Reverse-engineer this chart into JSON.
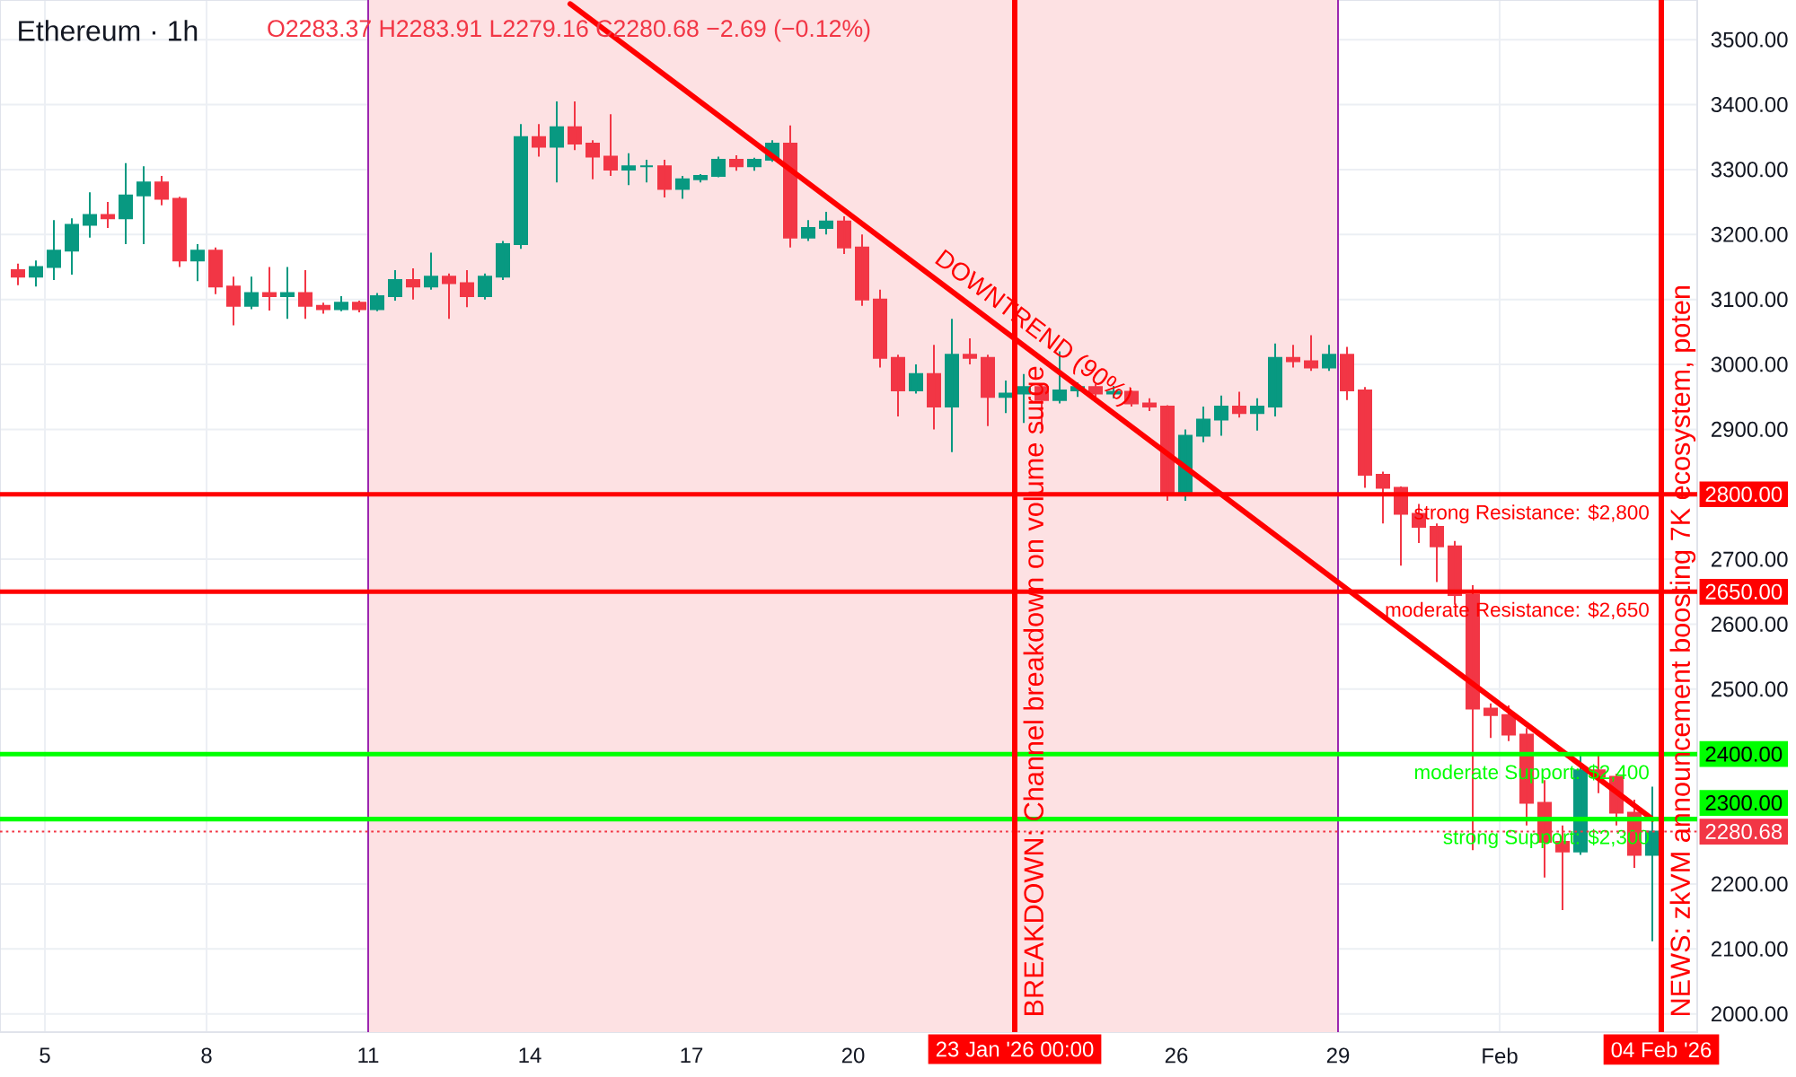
{
  "chart_data": {
    "type": "candlestick",
    "title": "Ethereum · 1h",
    "annotations": [
      "O2283.37 H2283.91 L2279.16 C2280.68 −2.69 (−0.12%)",
      {
        "text": "DOWNTREND (90%)",
        "x": "2026-01-23T03:00",
        "y": 3031
      },
      {
        "text": "2800.00",
        "x": "2026-02-04T16:00",
        "y": 2800
      },
      {
        "text": "2650.00",
        "x": "2026-02-04T16:00",
        "y": 2650
      },
      {
        "text": "2400.00",
        "x": "2026-02-04T16:00",
        "y": 2400
      },
      {
        "text": "2300.00",
        "x": "2026-02-04T16:00",
        "y": 2300
      },
      {
        "text": "2280.68",
        "x": "2026-02-04T16:00",
        "y": 2280.68
      },
      {
        "text": "23 Jan '26 00:00",
        "x": "2026-01-23",
        "y": 1972
      },
      {
        "text": "04 Feb '26",
        "x": "2026-02-04",
        "y": 1972
      }
    ],
    "xlim": [
      "2026-01-04T04:00",
      "2026-02-04T16:00"
    ],
    "ylim": [
      1972,
      3561
    ],
    "xticks": [
      {
        "value": "2026-01-05",
        "label": "5"
      },
      {
        "value": "2026-01-08",
        "label": "8"
      },
      {
        "value": "2026-01-11",
        "label": "11"
      },
      {
        "value": "2026-01-14",
        "label": "14"
      },
      {
        "value": "2026-01-17",
        "label": "17"
      },
      {
        "value": "2026-01-20",
        "label": "20"
      },
      {
        "value": "2026-01-26",
        "label": "26"
      },
      {
        "value": "2026-01-29",
        "label": "29"
      },
      {
        "value": "2026-02-01",
        "label": "Feb"
      }
    ],
    "yticks": [
      {
        "value": 2000,
        "label": "2000.00"
      },
      {
        "value": 2100,
        "label": "2100.00"
      },
      {
        "value": 2200,
        "label": "2200.00"
      },
      {
        "value": 2500,
        "label": "2500.00"
      },
      {
        "value": 2600,
        "label": "2600.00"
      },
      {
        "value": 2700,
        "label": "2700.00"
      },
      {
        "value": 2900,
        "label": "2900.00"
      },
      {
        "value": 3000,
        "label": "3000.00"
      },
      {
        "value": 3100,
        "label": "3100.00"
      },
      {
        "value": 3200,
        "label": "3200.00"
      },
      {
        "value": 3300,
        "label": "3300.00"
      },
      {
        "value": 3400,
        "label": "3400.00"
      },
      {
        "value": 3500,
        "label": "3500.00"
      }
    ],
    "grid": true,
    "series": [
      {
        "x": [
          "2026-01-04T12:00",
          "2026-01-04T20:00",
          "2026-01-05T04:00",
          "2026-01-05T12:00",
          "2026-01-05T20:00",
          "2026-01-06T04:00",
          "2026-01-06T12:00",
          "2026-01-06T20:00",
          "2026-01-07T04:00",
          "2026-01-07T12:00",
          "2026-01-07T20:00",
          "2026-01-08T04:00",
          "2026-01-08T12:00",
          "2026-01-08T20:00",
          "2026-01-09T04:00",
          "2026-01-09T12:00",
          "2026-01-09T20:00",
          "2026-01-10T04:00",
          "2026-01-10T12:00",
          "2026-01-10T20:00",
          "2026-01-11T04:00",
          "2026-01-11T12:00",
          "2026-01-11T20:00",
          "2026-01-12T04:00",
          "2026-01-12T12:00",
          "2026-01-12T20:00",
          "2026-01-13T04:00",
          "2026-01-13T12:00",
          "2026-01-13T20:00",
          "2026-01-14T04:00",
          "2026-01-14T12:00",
          "2026-01-14T20:00",
          "2026-01-15T04:00",
          "2026-01-15T12:00",
          "2026-01-15T20:00",
          "2026-01-16T04:00",
          "2026-01-16T12:00",
          "2026-01-16T20:00",
          "2026-01-17T04:00",
          "2026-01-17T12:00",
          "2026-01-17T20:00",
          "2026-01-18T04:00",
          "2026-01-18T12:00",
          "2026-01-18T20:00",
          "2026-01-19T04:00",
          "2026-01-19T12:00",
          "2026-01-19T20:00",
          "2026-01-20T04:00",
          "2026-01-20T12:00",
          "2026-01-20T20:00",
          "2026-01-21T04:00",
          "2026-01-21T12:00",
          "2026-01-21T20:00",
          "2026-01-22T04:00",
          "2026-01-22T12:00",
          "2026-01-22T20:00",
          "2026-01-23T04:00",
          "2026-01-23T12:00",
          "2026-01-23T20:00",
          "2026-01-24T04:00",
          "2026-01-24T12:00",
          "2026-01-24T20:00",
          "2026-01-25T04:00",
          "2026-01-25T12:00",
          "2026-01-25T20:00",
          "2026-01-26T04:00",
          "2026-01-26T12:00",
          "2026-01-26T20:00",
          "2026-01-27T04:00",
          "2026-01-27T12:00",
          "2026-01-27T20:00",
          "2026-01-28T04:00",
          "2026-01-28T12:00",
          "2026-01-28T20:00",
          "2026-01-29T04:00",
          "2026-01-29T12:00",
          "2026-01-29T20:00",
          "2026-01-30T04:00",
          "2026-01-30T12:00",
          "2026-01-30T20:00",
          "2026-01-31T04:00",
          "2026-01-31T12:00",
          "2026-01-31T20:00",
          "2026-02-01T04:00",
          "2026-02-01T12:00",
          "2026-02-01T20:00",
          "2026-02-02T04:00",
          "2026-02-02T12:00",
          "2026-02-02T20:00",
          "2026-02-03T04:00",
          "2026-02-03T12:00",
          "2026-02-03T20:00"
        ],
        "ohlc": [
          [
            3145,
            3155,
            3122,
            3135
          ],
          [
            3135,
            3160,
            3120,
            3150
          ],
          [
            3150,
            3222,
            3130,
            3175
          ],
          [
            3175,
            3225,
            3138,
            3215
          ],
          [
            3215,
            3265,
            3195,
            3230
          ],
          [
            3230,
            3250,
            3210,
            3225
          ],
          [
            3225,
            3310,
            3185,
            3260
          ],
          [
            3260,
            3305,
            3185,
            3280
          ],
          [
            3280,
            3290,
            3245,
            3255
          ],
          [
            3255,
            3258,
            3150,
            3160
          ],
          [
            3160,
            3185,
            3128,
            3175
          ],
          [
            3175,
            3180,
            3108,
            3120
          ],
          [
            3120,
            3135,
            3060,
            3090
          ],
          [
            3090,
            3135,
            3085,
            3110
          ],
          [
            3110,
            3150,
            3083,
            3105
          ],
          [
            3105,
            3150,
            3070,
            3110
          ],
          [
            3110,
            3145,
            3070,
            3090
          ],
          [
            3090,
            3095,
            3078,
            3085
          ],
          [
            3085,
            3105,
            3082,
            3095
          ],
          [
            3095,
            3098,
            3080,
            3085
          ],
          [
            3085,
            3110,
            3082,
            3105
          ],
          [
            3105,
            3145,
            3098,
            3130
          ],
          [
            3130,
            3148,
            3100,
            3120
          ],
          [
            3120,
            3172,
            3115,
            3135
          ],
          [
            3135,
            3140,
            3070,
            3125
          ],
          [
            3125,
            3145,
            3088,
            3105
          ],
          [
            3105,
            3140,
            3100,
            3135
          ],
          [
            3135,
            3190,
            3130,
            3185
          ],
          [
            3185,
            3370,
            3178,
            3350
          ],
          [
            3350,
            3370,
            3320,
            3335
          ],
          [
            3335,
            3405,
            3280,
            3365
          ],
          [
            3365,
            3405,
            3330,
            3340
          ],
          [
            3340,
            3345,
            3285,
            3320
          ],
          [
            3320,
            3385,
            3290,
            3300
          ],
          [
            3300,
            3325,
            3276,
            3305
          ],
          [
            3305,
            3315,
            3280,
            3305
          ],
          [
            3305,
            3315,
            3257,
            3270
          ],
          [
            3270,
            3290,
            3255,
            3285
          ],
          [
            3285,
            3293,
            3280,
            3290
          ],
          [
            3290,
            3320,
            3288,
            3315
          ],
          [
            3315,
            3322,
            3298,
            3305
          ],
          [
            3305,
            3318,
            3298,
            3315
          ],
          [
            3315,
            3345,
            3312,
            3340
          ],
          [
            3340,
            3368,
            3180,
            3195
          ],
          [
            3195,
            3222,
            3190,
            3210
          ],
          [
            3210,
            3235,
            3200,
            3220
          ],
          [
            3220,
            3228,
            3170,
            3180
          ],
          [
            3180,
            3200,
            3090,
            3100
          ],
          [
            3100,
            3115,
            2995,
            3010
          ],
          [
            3010,
            3015,
            2920,
            2960
          ],
          [
            2960,
            3000,
            2955,
            2985
          ],
          [
            2985,
            3030,
            2900,
            2935
          ],
          [
            2935,
            3070,
            2865,
            3015
          ],
          [
            3015,
            3040,
            3000,
            3010
          ],
          [
            3010,
            3015,
            2905,
            2950
          ],
          [
            2950,
            2975,
            2925,
            2955
          ],
          [
            2955,
            2985,
            2910,
            2965
          ],
          [
            2965,
            2970,
            2900,
            2945
          ],
          [
            2945,
            3020,
            2940,
            2960
          ],
          [
            2960,
            2972,
            2950,
            2965
          ],
          [
            2965,
            2970,
            2948,
            2955
          ],
          [
            2955,
            2967,
            2948,
            2958
          ],
          [
            2958,
            2960,
            2935,
            2940
          ],
          [
            2940,
            2948,
            2928,
            2935
          ],
          [
            2935,
            2937,
            2790,
            2800
          ],
          [
            2800,
            2900,
            2790,
            2890
          ],
          [
            2890,
            2935,
            2880,
            2915
          ],
          [
            2915,
            2952,
            2890,
            2935
          ],
          [
            2935,
            2958,
            2918,
            2925
          ],
          [
            2925,
            2948,
            2898,
            2935
          ],
          [
            2935,
            3032,
            2920,
            3010
          ],
          [
            3010,
            3030,
            2995,
            3005
          ],
          [
            3005,
            3045,
            2990,
            2995
          ],
          [
            2995,
            3030,
            2990,
            3015
          ],
          [
            3015,
            3027,
            2945,
            2960
          ],
          [
            2960,
            2965,
            2810,
            2830
          ],
          [
            2830,
            2835,
            2755,
            2810
          ],
          [
            2810,
            2812,
            2690,
            2770
          ],
          [
            2770,
            2785,
            2725,
            2750
          ],
          [
            2750,
            2755,
            2665,
            2720
          ],
          [
            2720,
            2728,
            2630,
            2645
          ],
          [
            2645,
            2660,
            2252,
            2470
          ],
          [
            2470,
            2478,
            2425,
            2460
          ],
          [
            2460,
            2475,
            2420,
            2430
          ],
          [
            2430,
            2440,
            2290,
            2325
          ],
          [
            2325,
            2360,
            2210,
            2265
          ],
          [
            2265,
            2290,
            2160,
            2250
          ],
          [
            2250,
            2400,
            2245,
            2375
          ],
          [
            2375,
            2400,
            2340,
            2365
          ],
          [
            2365,
            2370,
            2290,
            2310
          ],
          [
            2310,
            2330,
            2225,
            2245
          ],
          [
            2245,
            2350,
            2112,
            2280.68
          ]
        ],
        "colors": [
          "#f23645",
          "#089981",
          "#089981",
          "#089981",
          "#089981",
          "#f23645",
          "#089981",
          "#089981",
          "#f23645",
          "#f23645",
          "#089981",
          "#f23645",
          "#f23645",
          "#089981",
          "#f23645",
          "#089981",
          "#f23645",
          "#f23645",
          "#089981",
          "#f23645",
          "#089981",
          "#089981",
          "#f23645",
          "#089981",
          "#f23645",
          "#f23645",
          "#089981",
          "#089981",
          "#089981",
          "#f23645",
          "#089981",
          "#f23645",
          "#f23645",
          "#f23645",
          "#089981",
          "#089981",
          "#f23645",
          "#089981",
          "#089981",
          "#089981",
          "#f23645",
          "#089981",
          "#089981",
          "#f23645",
          "#089981",
          "#089981",
          "#f23645",
          "#f23645",
          "#f23645",
          "#f23645",
          "#089981",
          "#f23645",
          "#089981",
          "#f23645",
          "#f23645",
          "#089981",
          "#089981",
          "#f23645",
          "#089981",
          "#089981",
          "#f23645",
          "#089981",
          "#f23645",
          "#f23645",
          "#f23645",
          "#089981",
          "#089981",
          "#089981",
          "#f23645",
          "#089981",
          "#089981",
          "#f23645",
          "#f23645",
          "#089981",
          "#f23645",
          "#f23645",
          "#f23645",
          "#f23645",
          "#f23645",
          "#f23645",
          "#f23645",
          "#f23645",
          "#f23645",
          "#f23645",
          "#f23645",
          "#f23645",
          "#f23645",
          "#089981",
          "#f23645",
          "#f23645",
          "#f23645",
          "#089981"
        ]
      },
      {
        "type": "line",
        "x": [
          "2026-01-14T18:00",
          "2026-02-03T20:00"
        ],
        "values": [
          3555,
          2300
        ],
        "color": "#ff0000"
      }
    ],
    "ref_lines": [
      {
        "axis": "y",
        "value": 2800,
        "label": "strong Resistance: $2,800",
        "color": "#ff0000"
      },
      {
        "axis": "y",
        "value": 2650,
        "label": "moderate Resistance: $2,650",
        "color": "#ff0000"
      },
      {
        "axis": "y",
        "value": 2400,
        "label": "moderate Support: $2,400",
        "color": "#00ff00"
      },
      {
        "axis": "y",
        "value": 2300,
        "label": "strong Support: $2,300",
        "color": "#00ff00"
      },
      {
        "axis": "y",
        "value": 2280.68,
        "color": "#f23645",
        "line_style": "dotted"
      },
      {
        "axis": "x",
        "value": "2026-01-23",
        "label": "BREAKDOWN: Channel breakdown on volume surge",
        "color": "#ff0000"
      },
      {
        "axis": "x",
        "value": "2026-02-04",
        "label": "NEWS: zkVM announcement boosting 7K ecosystem, poten",
        "color": "#ff0000"
      }
    ],
    "bands": [
      {
        "axis": "x",
        "from": "2026-01-11",
        "to": "2026-01-29",
        "color": "#fde1e3"
      }
    ]
  }
}
